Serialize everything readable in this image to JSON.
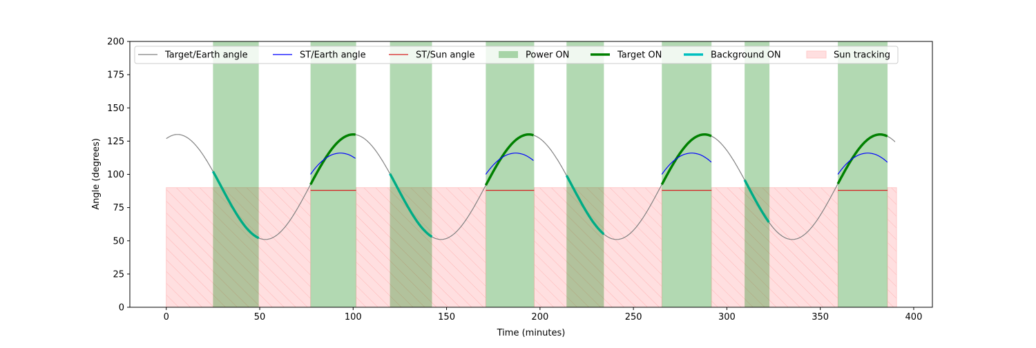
{
  "chart_data": {
    "type": "line",
    "title": "",
    "xlabel": "Time (minutes)",
    "ylabel": "Angle (degrees)",
    "xlim": [
      -19.5,
      410
    ],
    "ylim": [
      0,
      200
    ],
    "xticks": [
      0,
      50,
      100,
      150,
      200,
      250,
      300,
      350,
      400
    ],
    "yticks": [
      0,
      25,
      50,
      75,
      100,
      125,
      150,
      175,
      200
    ],
    "legend_position": "top",
    "legend": [
      "Target/Earth angle",
      "ST/Earth angle",
      "ST/Sun angle",
      "Power ON",
      "Target ON",
      "Background ON",
      "Sun tracking"
    ],
    "colors": {
      "target_earth": "#808080",
      "st_earth": "#0000ff",
      "st_sun": "#d62020",
      "power": "#008000",
      "target_on": "#008000",
      "background_on": "#00bfbf",
      "sun": "#ff9999"
    },
    "target_earth": {
      "range": [
        0,
        390
      ],
      "mean": 90.5,
      "amplitude": 39.5,
      "period_min": 94,
      "peak_at": 6
    },
    "power_on": [
      [
        25,
        49.5
      ],
      [
        77.2,
        101.6
      ],
      [
        119.7,
        142.2
      ],
      [
        171,
        196.9
      ],
      [
        214.2,
        234.2
      ],
      [
        265.2,
        291.8
      ],
      [
        309.5,
        322.8
      ],
      [
        359.4,
        386
      ]
    ],
    "target_on": [
      [
        77.2,
        101.6
      ],
      [
        171,
        196.9
      ],
      [
        265.2,
        291.8
      ],
      [
        359.4,
        386
      ]
    ],
    "background_on": [
      [
        25,
        49.5
      ],
      [
        119.7,
        142.2
      ],
      [
        214.2,
        234.2
      ],
      [
        309.5,
        322.8
      ]
    ],
    "st_earth": {
      "segments": [
        [
          77.2,
          101.6
        ],
        [
          171,
          196.9
        ],
        [
          265.2,
          291.8
        ],
        [
          359.4,
          386
        ]
      ],
      "start_value": 100,
      "peak_value": 116
    },
    "st_sun": {
      "segments": [
        [
          77.2,
          101.6
        ],
        [
          171,
          196.9
        ],
        [
          265.2,
          291.8
        ],
        [
          359.4,
          386
        ]
      ],
      "value": 88
    },
    "sun_tracking": {
      "segments": [
        [
          0,
          77.2
        ],
        [
          101.6,
          171
        ],
        [
          196.9,
          265.2
        ],
        [
          291.8,
          359.4
        ],
        [
          386,
          390.8
        ]
      ],
      "max_angle": 90
    }
  }
}
